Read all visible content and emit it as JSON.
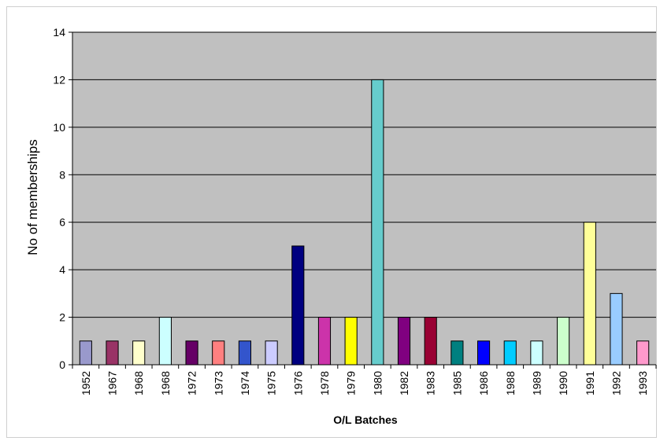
{
  "chart_data": {
    "type": "bar",
    "title": "",
    "xlabel": "O/L Batches",
    "ylabel": "No of memberships",
    "ylim": [
      0,
      14
    ],
    "yticks": [
      0,
      2,
      4,
      6,
      8,
      10,
      12,
      14
    ],
    "grid": true,
    "legend": "none",
    "categories": [
      "1952",
      "1967",
      "1968",
      "1968",
      "1972",
      "1973",
      "1974",
      "1975",
      "1976",
      "1978",
      "1979",
      "1980",
      "1982",
      "1983",
      "1985",
      "1986",
      "1988",
      "1989",
      "1990",
      "1991",
      "1992",
      "1993"
    ],
    "values": [
      1,
      1,
      1,
      2,
      1,
      1,
      1,
      1,
      5,
      2,
      2,
      12,
      2,
      2,
      1,
      1,
      1,
      1,
      2,
      6,
      3,
      1
    ],
    "colors": [
      "#9999cc",
      "#993366",
      "#ffffcc",
      "#ccffff",
      "#660066",
      "#ff8080",
      "#3355cc",
      "#ccccff",
      "#000080",
      "#cc33aa",
      "#ffff00",
      "#66cccc",
      "#800080",
      "#990033",
      "#008080",
      "#0000ff",
      "#00ccff",
      "#ccffff",
      "#ccffcc",
      "#ffff99",
      "#99ccff",
      "#ff99cc"
    ],
    "plot_background": "#c0c0c0"
  }
}
